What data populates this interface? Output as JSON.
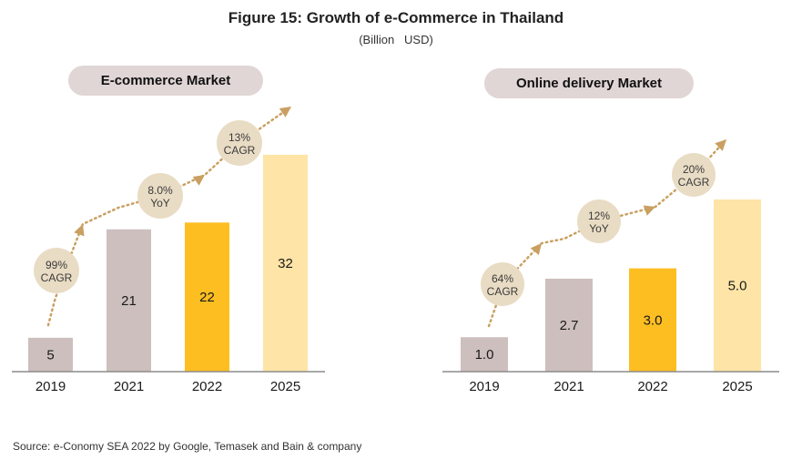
{
  "title": "Figure 15: Growth of e-Commerce in Thailand",
  "subtitle": "(Billion   USD)",
  "source": "Source: e-Conomy SEA 2022 by Google, Temasek and Bain & company",
  "colors": {
    "actual": "#cdbfbe",
    "current": "#fdbe22",
    "forecast": "#fee4a6",
    "bubble": "#e9dcc4",
    "arrow": "#c9a061",
    "pill": "#e0d6d5",
    "axis": "#8c8c8c"
  },
  "chart_data": [
    {
      "type": "bar",
      "title": "E-commerce Market",
      "categories": [
        "2019",
        "2021",
        "2022",
        "2025"
      ],
      "values": [
        5,
        21,
        22,
        32
      ],
      "value_labels": [
        "5",
        "21",
        "22",
        "32"
      ],
      "bar_styles": [
        "actual",
        "actual",
        "current",
        "forecast"
      ],
      "ylim": [
        0,
        36
      ],
      "xlabel": "",
      "ylabel": "",
      "grid": false,
      "annotations": [
        {
          "line1": "99%",
          "line2": "CAGR",
          "between": [
            "2019",
            "2021"
          ]
        },
        {
          "line1": "8.0%",
          "line2": "YoY",
          "between": [
            "2021",
            "2022"
          ]
        },
        {
          "line1": "13%",
          "line2": "CAGR",
          "between": [
            "2022",
            "2025"
          ]
        }
      ]
    },
    {
      "type": "bar",
      "title": "Online delivery Market",
      "categories": [
        "2019",
        "2021",
        "2022",
        "2025"
      ],
      "values": [
        1.0,
        2.7,
        3.0,
        5.0
      ],
      "value_labels": [
        "1.0",
        "2.7",
        "3.0",
        "5.0"
      ],
      "bar_styles": [
        "actual",
        "actual",
        "current",
        "forecast"
      ],
      "ylim": [
        0,
        7
      ],
      "xlabel": "",
      "ylabel": "",
      "grid": false,
      "annotations": [
        {
          "line1": "64%",
          "line2": "CAGR",
          "between": [
            "2019",
            "2021"
          ]
        },
        {
          "line1": "12%",
          "line2": "YoY",
          "between": [
            "2021",
            "2022"
          ]
        },
        {
          "line1": "20%",
          "line2": "CAGR",
          "between": [
            "2022",
            "2025"
          ]
        }
      ]
    }
  ]
}
